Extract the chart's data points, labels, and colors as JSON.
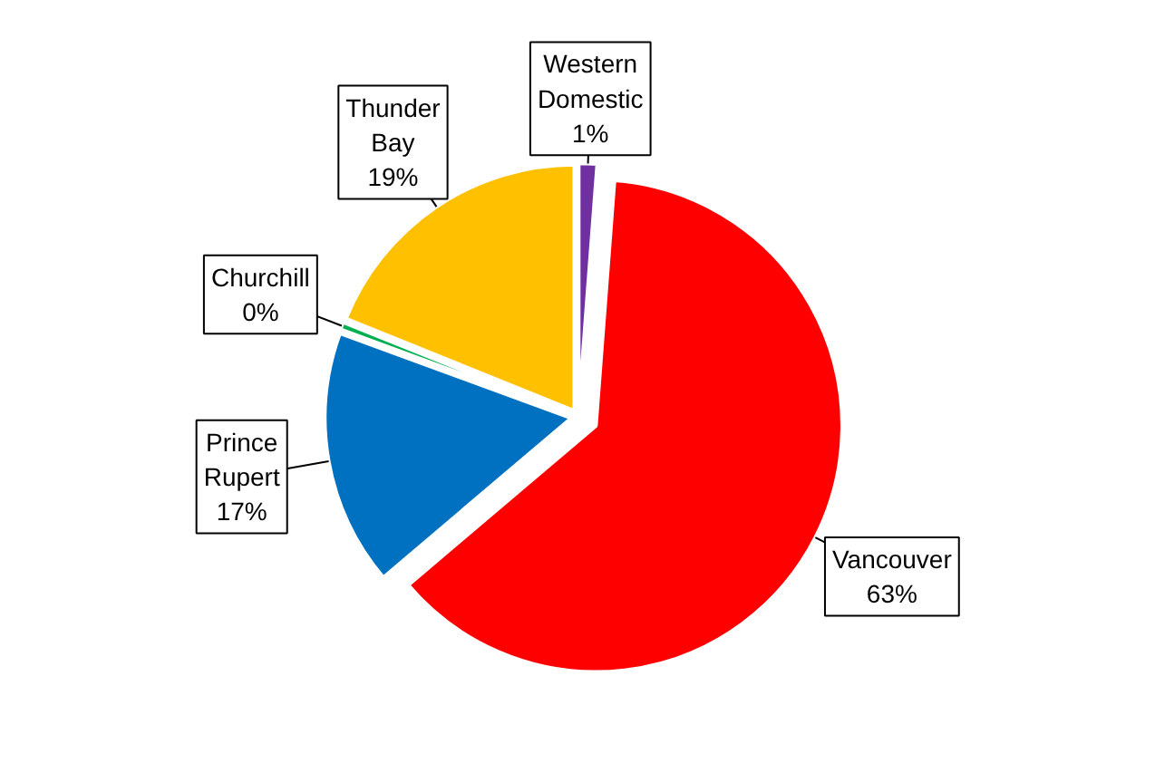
{
  "chart_data": {
    "type": "pie",
    "categories": [
      "Western Domestic",
      "Vancouver",
      "Prince Rupert",
      "Churchill",
      "Thunder Bay"
    ],
    "values": [
      1.2,
      62.6,
      16.8,
      0.5,
      18.9
    ],
    "value_labels": [
      "1%",
      "63%",
      "17%",
      "0%",
      "19%"
    ],
    "colors": [
      "#7030a0",
      "#ff0000",
      "#0070c0",
      "#00b050",
      "#ffc000"
    ]
  }
}
